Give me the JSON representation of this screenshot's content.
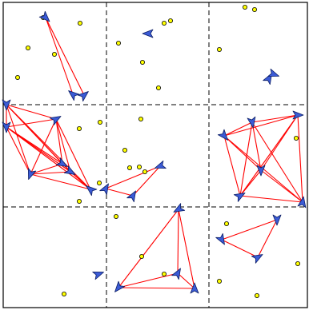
{
  "title": "",
  "colors": {
    "background": "#ffffff",
    "frame": "#000000",
    "grid": "#000000",
    "edge": "#ff0000",
    "agent_fill": "#3b5bd6",
    "agent_stroke": "#0d1f66",
    "point_fill": "#ffff00",
    "point_stroke": "#000000"
  },
  "legend": [],
  "icons": {
    "agent": "triangle-arrow-icon",
    "point": "circle-dot-icon"
  }
}
